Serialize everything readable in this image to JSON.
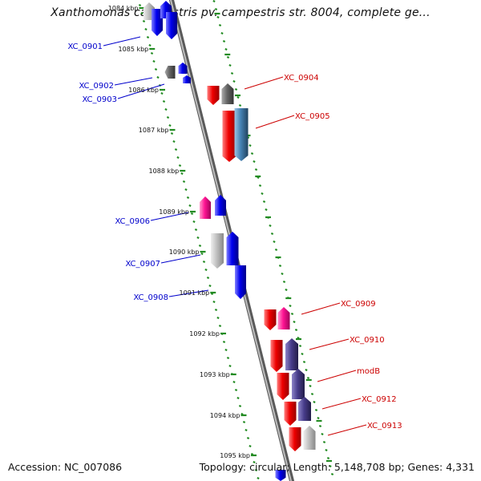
{
  "title": "Xanthomonas campestris pv. campestris str. 8004, complete ge...",
  "footer": {
    "accession": "Accession: NC_007086",
    "meta": "Topology: circular; Length: 5,148,708 bp; Genes: 4,331"
  },
  "colors": {
    "backbone": "#808080",
    "tick": "#228b22",
    "left_labels": "#0000cc",
    "right_labels": "#cc0000",
    "red": "#ee0000",
    "blue": "#0000ee",
    "pink": "#ff1493",
    "gray": "#c0c0c0",
    "darkgray": "#666666",
    "steelblue": "#4682b4",
    "purple": "#483d8b"
  },
  "kbp_labels": [
    "1084 kbp",
    "1085 kbp",
    "1086 kbp",
    "1087 kbp",
    "1088 kbp",
    "1089 kbp",
    "1090 kbp",
    "1091 kbp",
    "1092 kbp",
    "1093 kbp",
    "1094 kbp",
    "1095 kbp"
  ],
  "gene_labels_left": [
    "XC_0901",
    "XC_0902",
    "XC_0903",
    "XC_0906",
    "XC_0907",
    "XC_0908"
  ],
  "gene_labels_right": [
    "XC_0904",
    "XC_0905",
    "XC_0909",
    "XC_0910",
    "modB",
    "XC_0912",
    "XC_0913"
  ]
}
